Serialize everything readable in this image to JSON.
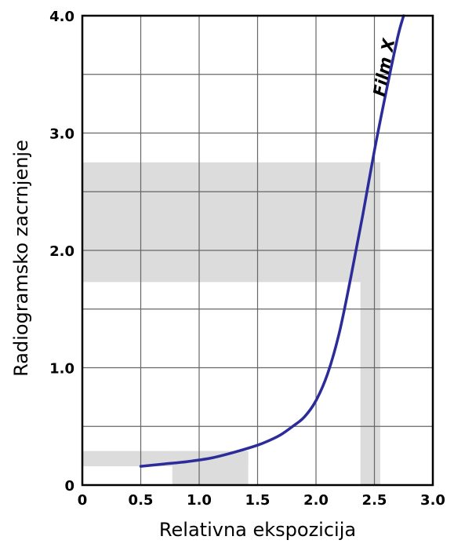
{
  "chart_data": {
    "type": "line",
    "xlabel": "Relativna ekspozicija",
    "ylabel": "Radiogramsko zacrnjenje",
    "xlim": [
      0,
      3.0
    ],
    "ylim": [
      0,
      4.0
    ],
    "x_ticks": [
      "0",
      "0.5",
      "1.0",
      "1.5",
      "2.0",
      "2.5",
      "3.0"
    ],
    "y_ticks": [
      "0",
      "1.0",
      "2.0",
      "3.0",
      "4.0"
    ],
    "grid": true,
    "series": [
      {
        "name": "Film X",
        "color": "#2b2b9a",
        "x": [
          0.5,
          0.7,
          0.9,
          1.1,
          1.3,
          1.5,
          1.6,
          1.7,
          1.8,
          1.9,
          2.0,
          2.1,
          2.2,
          2.3,
          2.4,
          2.5,
          2.6,
          2.7,
          2.75
        ],
        "y": [
          0.16,
          0.18,
          0.2,
          0.23,
          0.28,
          0.34,
          0.38,
          0.43,
          0.5,
          0.58,
          0.72,
          0.95,
          1.3,
          1.78,
          2.3,
          2.85,
          3.35,
          3.82,
          4.0
        ]
      }
    ],
    "shaded_regions": [
      {
        "orientation": "horizontal",
        "y_range": [
          1.73,
          2.75
        ],
        "x_range": [
          0,
          2.55
        ]
      },
      {
        "orientation": "vertical",
        "x_range": [
          2.38,
          2.55
        ],
        "y_range": [
          0,
          2.75
        ]
      },
      {
        "orientation": "horizontal",
        "y_range": [
          0.16,
          0.29
        ],
        "x_range": [
          0,
          1.42
        ]
      },
      {
        "orientation": "vertical",
        "x_range": [
          0.77,
          1.42
        ],
        "y_range": [
          0,
          0.29
        ]
      }
    ],
    "shade_color": "#dcdcdc",
    "axis_color": "#000000",
    "grid_color": "#666666"
  }
}
